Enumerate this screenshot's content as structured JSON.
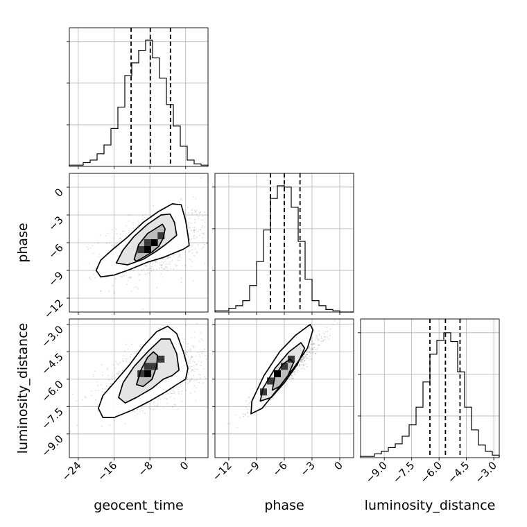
{
  "chart_data": {
    "type": "corner",
    "parameters": [
      "geocent_time",
      "phase",
      "luminosity_distance"
    ],
    "ranges": {
      "geocent_time": [
        -26,
        5
      ],
      "phase": [
        -13.5,
        1.5
      ],
      "luminosity_distance": [
        -10.3,
        -2.7
      ]
    },
    "ticks": {
      "geocent_time": [
        -24,
        -16,
        -8,
        0
      ],
      "phase": [
        -12,
        -9,
        -6,
        -3,
        0
      ],
      "luminosity_distance": [
        -9.0,
        -7.5,
        -6.0,
        -4.5,
        -3.0
      ]
    },
    "tick_labels": {
      "geocent_time": [
        "−24",
        "−16",
        "−8",
        "0"
      ],
      "phase": [
        "−12",
        "−9",
        "−6",
        "−3",
        "0"
      ],
      "luminosity_distance": [
        "−9.0",
        "−7.5",
        "−6.0",
        "−4.5",
        "−3.0"
      ]
    },
    "quantiles": {
      "geocent_time": [
        -12.2,
        -7.9,
        -3.4
      ],
      "phase": [
        -7.5,
        -6.0,
        -4.3
      ],
      "luminosity_distance": [
        -6.5,
        -5.65,
        -4.85
      ]
    },
    "histograms": {
      "geocent_time": {
        "edges": [
          -26,
          -24.45,
          -22.9,
          -21.35,
          -19.8,
          -18.25,
          -16.7,
          -15.15,
          -13.6,
          -12.05,
          -10.5,
          -8.95,
          -7.4,
          -5.85,
          -4.3,
          -2.75,
          -1.2,
          0.35,
          1.9,
          3.45,
          5
        ],
        "counts": [
          0.01,
          0.01,
          0.03,
          0.05,
          0.1,
          0.17,
          0.3,
          0.47,
          0.72,
          0.82,
          0.92,
          1.0,
          0.86,
          0.7,
          0.49,
          0.32,
          0.16,
          0.05,
          0.02,
          0.01
        ]
      },
      "phase": {
        "edges": [
          -13.5,
          -12.75,
          -12.0,
          -11.25,
          -10.5,
          -9.75,
          -9.0,
          -8.25,
          -7.5,
          -6.75,
          -6.0,
          -5.25,
          -4.5,
          -3.75,
          -3.0,
          -2.25,
          -1.5,
          -0.75,
          0.0,
          0.75,
          1.5
        ],
        "counts": [
          0.01,
          0.01,
          0.03,
          0.05,
          0.09,
          0.21,
          0.4,
          0.65,
          0.9,
          1.0,
          0.99,
          0.83,
          0.56,
          0.26,
          0.09,
          0.05,
          0.02,
          0.01,
          0.0,
          0.0
        ]
      },
      "luminosity_distance": {
        "edges": [
          -10.3,
          -9.92,
          -9.54,
          -9.16,
          -8.78,
          -8.4,
          -8.02,
          -7.64,
          -7.26,
          -6.88,
          -6.5,
          -6.12,
          -5.74,
          -5.36,
          -4.98,
          -4.6,
          -4.22,
          -3.84,
          -3.46,
          -3.08,
          -2.7
        ],
        "counts": [
          0.01,
          0.01,
          0.03,
          0.05,
          0.08,
          0.11,
          0.17,
          0.26,
          0.4,
          0.6,
          0.82,
          0.93,
          0.99,
          0.92,
          0.68,
          0.4,
          0.22,
          0.1,
          0.05,
          0.02
        ]
      }
    },
    "pairs": [
      {
        "x": "geocent_time",
        "y": "phase",
        "mean": [
          -6.5,
          -6.2
        ],
        "sd": [
          6.0,
          1.9
        ],
        "rho": 0.45,
        "levels": [
          [
            [
              -11.5,
              -7.8
            ],
            [
              -10.5,
              -6.2
            ],
            [
              -8.5,
              -5.0
            ],
            [
              -6.5,
              -4.4
            ],
            [
              -5.2,
              -4.0
            ],
            [
              -4.6,
              -4.5
            ],
            [
              -5.0,
              -5.5
            ],
            [
              -6.0,
              -6.4
            ],
            [
              -7.5,
              -7.0
            ],
            [
              -9.5,
              -7.6
            ],
            [
              -11.0,
              -8.0
            ]
          ],
          [
            [
              -15.5,
              -8.2
            ],
            [
              -14.0,
              -6.8
            ],
            [
              -11.5,
              -5.3
            ],
            [
              -8.5,
              -4.0
            ],
            [
              -5.5,
              -3.0
            ],
            [
              -3.5,
              -2.9
            ],
            [
              -2.5,
              -3.8
            ],
            [
              -2.0,
              -5.2
            ],
            [
              -3.0,
              -5.6
            ],
            [
              -4.5,
              -6.2
            ],
            [
              -6.5,
              -6.9
            ],
            [
              -9.5,
              -7.8
            ],
            [
              -13.0,
              -8.4
            ]
          ],
          [
            [
              -20.0,
              -9.0
            ],
            [
              -19.0,
              -7.9
            ],
            [
              -16.5,
              -6.8
            ],
            [
              -13.0,
              -5.4
            ],
            [
              -9.5,
              -3.8
            ],
            [
              -6.0,
              -2.6
            ],
            [
              -3.0,
              -1.8
            ],
            [
              -1.0,
              -1.9
            ],
            [
              0.0,
              -3.6
            ],
            [
              0.5,
              -5.2
            ],
            [
              0.8,
              -6.3
            ],
            [
              -0.5,
              -6.7
            ],
            [
              -2.0,
              -7.0
            ],
            [
              -5.0,
              -7.6
            ],
            [
              -8.5,
              -8.1
            ],
            [
              -12.5,
              -8.9
            ],
            [
              -16.0,
              -9.5
            ],
            [
              -19.0,
              -9.7
            ]
          ]
        ],
        "high_cells": [
          [
            -8.5,
            -6.75,
            2
          ],
          [
            -10.0,
            -6.75,
            1
          ],
          [
            -7.0,
            -6.0,
            2
          ],
          [
            -8.5,
            -6.0,
            1
          ],
          [
            -5.5,
            -5.25,
            1
          ]
        ]
      },
      {
        "x": "geocent_time",
        "y": "luminosity_distance",
        "mean": [
          -6.5,
          -5.7
        ],
        "sd": [
          6.0,
          0.95
        ],
        "rho": 0.45,
        "levels": [
          [
            [
              -11.0,
              -6.3
            ],
            [
              -10.0,
              -5.5
            ],
            [
              -8.5,
              -4.8
            ],
            [
              -7.2,
              -4.5
            ],
            [
              -6.3,
              -4.7
            ],
            [
              -6.5,
              -5.3
            ],
            [
              -7.5,
              -6.0
            ],
            [
              -9.5,
              -6.4
            ]
          ],
          [
            [
              -15.0,
              -7.0
            ],
            [
              -14.0,
              -6.2
            ],
            [
              -11.5,
              -5.3
            ],
            [
              -8.5,
              -4.5
            ],
            [
              -5.5,
              -3.8
            ],
            [
              -3.5,
              -3.8
            ],
            [
              -2.0,
              -4.6
            ],
            [
              -1.5,
              -5.5
            ],
            [
              -3.0,
              -5.8
            ],
            [
              -5.0,
              -6.0
            ],
            [
              -7.5,
              -6.5
            ],
            [
              -11.0,
              -7.0
            ],
            [
              -13.5,
              -7.3
            ]
          ],
          [
            [
              -19.5,
              -7.6
            ],
            [
              -18.5,
              -6.9
            ],
            [
              -16.0,
              -6.2
            ],
            [
              -12.5,
              -5.2
            ],
            [
              -9.5,
              -4.2
            ],
            [
              -6.5,
              -3.4
            ],
            [
              -4.0,
              -3.1
            ],
            [
              -2.0,
              -3.5
            ],
            [
              -0.5,
              -4.5
            ],
            [
              0.5,
              -5.4
            ],
            [
              0.0,
              -6.0
            ],
            [
              -2.0,
              -6.3
            ],
            [
              -4.5,
              -6.7
            ],
            [
              -8.0,
              -7.2
            ],
            [
              -12.0,
              -7.7
            ],
            [
              -16.0,
              -8.1
            ],
            [
              -18.5,
              -8.1
            ]
          ]
        ],
        "high_cells": [
          [
            -8.5,
            -5.7,
            2
          ],
          [
            -10.0,
            -5.7,
            1
          ],
          [
            -7.0,
            -5.3,
            1
          ],
          [
            -8.5,
            -5.3,
            1
          ],
          [
            -5.5,
            -4.9,
            1
          ]
        ]
      },
      {
        "x": "phase",
        "y": "luminosity_distance",
        "mean": [
          -6.0,
          -5.7
        ],
        "sd": [
          1.9,
          0.95
        ],
        "rho": 0.95,
        "levels": [
          [
            [
              -7.3,
              -6.6
            ],
            [
              -7.0,
              -5.8
            ],
            [
              -6.2,
              -5.2
            ],
            [
              -5.4,
              -4.9
            ],
            [
              -5.0,
              -5.1
            ],
            [
              -5.6,
              -5.8
            ],
            [
              -6.5,
              -6.4
            ]
          ],
          [
            [
              -8.6,
              -7.2
            ],
            [
              -8.3,
              -6.5
            ],
            [
              -7.0,
              -5.4
            ],
            [
              -5.5,
              -4.5
            ],
            [
              -4.2,
              -4.0
            ],
            [
              -3.8,
              -4.3
            ],
            [
              -4.6,
              -5.2
            ],
            [
              -6.0,
              -6.2
            ],
            [
              -7.4,
              -7.0
            ]
          ],
          [
            [
              -9.6,
              -7.9
            ],
            [
              -9.5,
              -7.2
            ],
            [
              -8.2,
              -5.8
            ],
            [
              -6.5,
              -4.5
            ],
            [
              -4.8,
              -3.6
            ],
            [
              -3.2,
              -3.0
            ],
            [
              -2.9,
              -3.3
            ],
            [
              -3.5,
              -4.3
            ],
            [
              -5.0,
              -5.4
            ],
            [
              -6.8,
              -6.6
            ],
            [
              -8.4,
              -7.6
            ]
          ]
        ],
        "high_cells": [
          [
            -6.75,
            -5.7,
            2
          ],
          [
            -6.0,
            -5.3,
            1
          ],
          [
            -7.5,
            -6.1,
            1
          ],
          [
            -5.25,
            -4.9,
            1
          ],
          [
            -8.25,
            -6.7,
            1
          ]
        ]
      }
    ],
    "ylabel_rows": [
      "phase",
      "luminosity_distance"
    ],
    "xlabels": [
      "geocent_time",
      "phase",
      "luminosity_distance"
    ]
  }
}
